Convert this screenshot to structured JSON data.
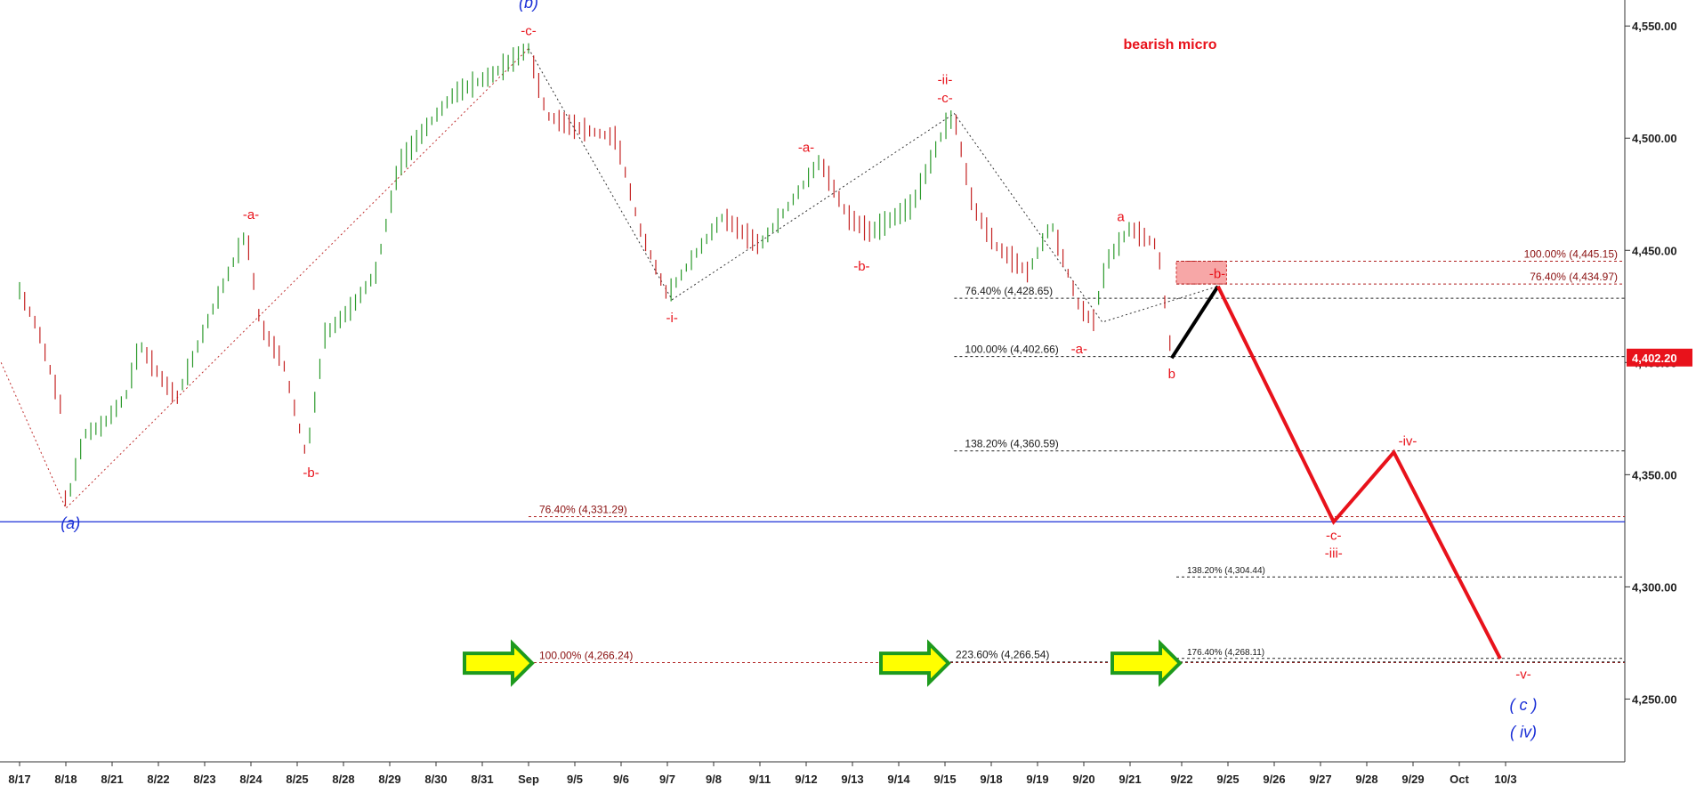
{
  "chart_data": {
    "type": "line",
    "title": "",
    "note": "bearish micro",
    "ylim": [
      4222,
      4560
    ],
    "grid": false,
    "x_axis_labels": [
      "8/17",
      "8/18",
      "8/21",
      "8/22",
      "8/23",
      "8/24",
      "8/25",
      "8/28",
      "8/29",
      "8/30",
      "8/31",
      "Sep",
      "9/5",
      "9/6",
      "9/7",
      "9/8",
      "9/11",
      "9/12",
      "9/13",
      "9/14",
      "9/15",
      "9/18",
      "9/19",
      "9/20",
      "9/21",
      "9/22",
      "9/25",
      "9/26",
      "9/27",
      "9/28",
      "9/29",
      "Oct",
      "10/3"
    ],
    "y_ticks": [
      4250,
      4300,
      4350,
      4400,
      4450,
      4500,
      4550
    ],
    "y_tick_labels": [
      "4,250.00",
      "4,300.00",
      "4,350.00",
      "4,400.00",
      "4,450.00",
      "4,500.00",
      "4,550.00"
    ],
    "last_price": 4402.2,
    "last_price_label": "4,402.20",
    "price_path": [
      {
        "x": 0,
        "y": 4432
      },
      {
        "x": 0.4,
        "y": 4415
      },
      {
        "x": 0.9,
        "y": 4380
      },
      {
        "x": 1.0,
        "y": 4335
      },
      {
        "x": 1.4,
        "y": 4368
      },
      {
        "x": 1.8,
        "y": 4372
      },
      {
        "x": 2.3,
        "y": 4385
      },
      {
        "x": 2.6,
        "y": 4408
      },
      {
        "x": 3.1,
        "y": 4392
      },
      {
        "x": 3.4,
        "y": 4384
      },
      {
        "x": 4.1,
        "y": 4420
      },
      {
        "x": 4.9,
        "y": 4458
      },
      {
        "x": 5.2,
        "y": 4417
      },
      {
        "x": 5.7,
        "y": 4400
      },
      {
        "x": 6.2,
        "y": 4358
      },
      {
        "x": 6.6,
        "y": 4412
      },
      {
        "x": 7.2,
        "y": 4425
      },
      {
        "x": 7.7,
        "y": 4440
      },
      {
        "x": 8.2,
        "y": 4488
      },
      {
        "x": 8.8,
        "y": 4505
      },
      {
        "x": 9.4,
        "y": 4520
      },
      {
        "x": 10.2,
        "y": 4528
      },
      {
        "x": 11.0,
        "y": 4540
      },
      {
        "x": 11.4,
        "y": 4510
      },
      {
        "x": 12.0,
        "y": 4505
      },
      {
        "x": 12.9,
        "y": 4500
      },
      {
        "x": 13.4,
        "y": 4460
      },
      {
        "x": 14.0,
        "y": 4430
      },
      {
        "x": 14.6,
        "y": 4448
      },
      {
        "x": 15.2,
        "y": 4465
      },
      {
        "x": 16.0,
        "y": 4452
      },
      {
        "x": 16.8,
        "y": 4475
      },
      {
        "x": 17.3,
        "y": 4490
      },
      {
        "x": 17.9,
        "y": 4465
      },
      {
        "x": 18.4,
        "y": 4458
      },
      {
        "x": 19.3,
        "y": 4470
      },
      {
        "x": 20.0,
        "y": 4505
      },
      {
        "x": 20.2,
        "y": 4510
      },
      {
        "x": 20.6,
        "y": 4470
      },
      {
        "x": 21.1,
        "y": 4452
      },
      {
        "x": 21.8,
        "y": 4440
      },
      {
        "x": 22.3,
        "y": 4462
      },
      {
        "x": 22.9,
        "y": 4425
      },
      {
        "x": 23.2,
        "y": 4418
      },
      {
        "x": 23.5,
        "y": 4445
      },
      {
        "x": 24.0,
        "y": 4460
      },
      {
        "x": 24.6,
        "y": 4452
      },
      {
        "x": 24.9,
        "y": 4402
      }
    ],
    "projection": [
      {
        "x": 24.9,
        "y": 4402
      },
      {
        "x": 25.9,
        "y": 4434
      },
      {
        "x": 28.4,
        "y": 4329
      },
      {
        "x": 29.7,
        "y": 4360
      },
      {
        "x": 32.0,
        "y": 4268
      }
    ],
    "fib_levels": [
      {
        "label": "76.40% (4,428.65)",
        "value": 4428.65,
        "group": "black",
        "x_start": 20.2
      },
      {
        "label": "100.00% (4,402.66)",
        "value": 4402.66,
        "group": "black",
        "x_start": 20.2
      },
      {
        "label": "138.20% (4,360.59)",
        "value": 4360.59,
        "group": "black",
        "x_start": 20.2
      },
      {
        "label": "100.00% (4,445.15)",
        "value": 4445.15,
        "group": "red",
        "x_start": 25.0,
        "label_side": "right"
      },
      {
        "label": "76.40% (4,434.97)",
        "value": 4434.97,
        "group": "red",
        "x_start": 25.0,
        "label_side": "right"
      },
      {
        "label": "76.40% (4,331.29)",
        "value": 4331.29,
        "group": "red",
        "x_start": 11.0
      },
      {
        "label": "138.20% (4,304.44)",
        "value": 4304.44,
        "group": "black",
        "x_start": 25.0,
        "small": true
      },
      {
        "label": "100.00% (4,266.24)",
        "value": 4266.24,
        "group": "red",
        "x_start": 11.0
      },
      {
        "label": "223.60% (4,266.54)",
        "value": 4266.54,
        "group": "black",
        "x_start": 20.0
      },
      {
        "label": "176.40% (4,268.11)",
        "value": 4268.11,
        "group": "black",
        "x_start": 25.0,
        "small": true
      }
    ],
    "support_line": {
      "value": 4329,
      "color": "#1a2fd6"
    },
    "target_zone": {
      "x0": 25.0,
      "x1": 25.7,
      "y0": 4434.97,
      "y1": 4445.15,
      "label": "-b-"
    },
    "wave_labels": [
      {
        "text": "(b)",
        "x": 11.0,
        "y": 4558,
        "color": "blue"
      },
      {
        "text": "-c-",
        "x": 11.0,
        "y": 4546,
        "color": "red"
      },
      {
        "text": "-a-",
        "x": 5.0,
        "y": 4464,
        "color": "red"
      },
      {
        "text": "-b-",
        "x": 6.3,
        "y": 4349,
        "color": "red"
      },
      {
        "text": "(a)",
        "x": 1.1,
        "y": 4326,
        "color": "blue"
      },
      {
        "text": "-i-",
        "x": 14.1,
        "y": 4418,
        "color": "red"
      },
      {
        "text": "-a-",
        "x": 17.0,
        "y": 4494,
        "color": "red"
      },
      {
        "text": "-b-",
        "x": 18.2,
        "y": 4441,
        "color": "red"
      },
      {
        "text": "-ii-",
        "x": 20.0,
        "y": 4524,
        "color": "red"
      },
      {
        "text": "-c-",
        "x": 20.0,
        "y": 4516,
        "color": "red"
      },
      {
        "text": "-a-",
        "x": 22.9,
        "y": 4404,
        "color": "red"
      },
      {
        "text": "a",
        "x": 23.8,
        "y": 4463,
        "color": "red"
      },
      {
        "text": "b",
        "x": 24.9,
        "y": 4393,
        "color": "red"
      },
      {
        "text": "-iv-",
        "x": 30.0,
        "y": 4363,
        "color": "red"
      },
      {
        "text": "-c-",
        "x": 28.4,
        "y": 4321,
        "color": "red"
      },
      {
        "text": "-iii-",
        "x": 28.4,
        "y": 4313,
        "color": "red"
      },
      {
        "text": "-v-",
        "x": 32.5,
        "y": 4259,
        "color": "red"
      },
      {
        "text": "( c )",
        "x": 32.5,
        "y": 4245,
        "color": "blue"
      },
      {
        "text": "( iv)",
        "x": 32.5,
        "y": 4233,
        "color": "blue"
      }
    ],
    "annotation_arrows": [
      {
        "x": 11.0,
        "y": 4266
      },
      {
        "x": 20.0,
        "y": 4266
      },
      {
        "x": 25.0,
        "y": 4266
      }
    ]
  }
}
